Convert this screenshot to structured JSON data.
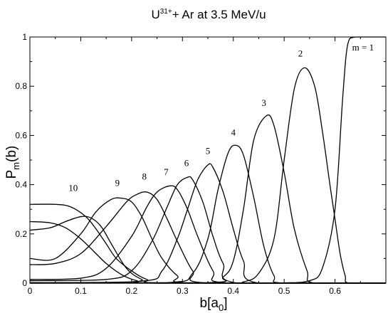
{
  "chart_data": {
    "type": "line",
    "title": {
      "projectile": "U",
      "charge": "31+",
      "rest": "+  Ar   at  3.5  MeV/u"
    },
    "xlabel": {
      "base": "b[a",
      "sub": "0",
      "close": "]"
    },
    "ylabel": {
      "base": "P",
      "sub": "m",
      "arg": "(b)"
    },
    "xlim": [
      0,
      0.7
    ],
    "ylim": [
      0,
      1
    ],
    "xticks": [
      "0",
      "0.1",
      "0.2",
      "0.3",
      "0.4",
      "0.5",
      "0.6"
    ],
    "yticks": [
      "0",
      "0.2",
      "0.4",
      "0.6",
      "0.8",
      "1"
    ],
    "grid": false,
    "legend": "none",
    "series": [
      {
        "label": "m = 1",
        "label_at": [
          0.655,
          0.945
        ],
        "x": [
          0,
          0.45,
          0.5,
          0.55,
          0.575,
          0.6,
          0.615,
          0.625,
          0.64,
          0.7
        ],
        "y": [
          0,
          0,
          0.001,
          0.01,
          0.06,
          0.3,
          0.75,
          0.97,
          1,
          1
        ]
      },
      {
        "label": "2",
        "label_at": [
          0.532,
          0.92
        ],
        "x": [
          0,
          0.38,
          0.42,
          0.45,
          0.48,
          0.5,
          0.52,
          0.54,
          0.56,
          0.575,
          0.59,
          0.6,
          0.61,
          0.62,
          0.628
        ],
        "y": [
          0,
          0,
          0.005,
          0.04,
          0.18,
          0.5,
          0.79,
          0.875,
          0.8,
          0.62,
          0.4,
          0.26,
          0.12,
          0.03,
          0
        ]
      },
      {
        "label": "3",
        "label_at": [
          0.46,
          0.72
        ],
        "x": [
          0,
          0.35,
          0.38,
          0.4,
          0.42,
          0.44,
          0.465,
          0.48,
          0.5,
          0.52,
          0.545,
          0.56
        ],
        "y": [
          0,
          0.002,
          0.025,
          0.09,
          0.3,
          0.58,
          0.68,
          0.64,
          0.45,
          0.22,
          0.05,
          0
        ]
      },
      {
        "label": "4",
        "label_at": [
          0.4,
          0.6
        ],
        "x": [
          0,
          0.27,
          0.32,
          0.35,
          0.37,
          0.39,
          0.405,
          0.42,
          0.44,
          0.46,
          0.48,
          0.5
        ],
        "y": [
          0,
          0.002,
          0.04,
          0.18,
          0.38,
          0.53,
          0.56,
          0.52,
          0.35,
          0.15,
          0.03,
          0
        ]
      },
      {
        "label": "5",
        "label_at": [
          0.35,
          0.525
        ],
        "x": [
          0,
          0.22,
          0.26,
          0.29,
          0.31,
          0.33,
          0.35,
          0.36,
          0.38,
          0.4,
          0.42,
          0.45
        ],
        "y": [
          0.002,
          0.008,
          0.05,
          0.18,
          0.3,
          0.42,
          0.48,
          0.47,
          0.37,
          0.22,
          0.09,
          0
        ]
      },
      {
        "label": "6",
        "label_at": [
          0.308,
          0.475
        ],
        "x": [
          0,
          0.15,
          0.2,
          0.24,
          0.27,
          0.29,
          0.31,
          0.32,
          0.34,
          0.36,
          0.38,
          0.41
        ],
        "y": [
          0.01,
          0.015,
          0.05,
          0.17,
          0.31,
          0.4,
          0.43,
          0.42,
          0.33,
          0.19,
          0.08,
          0
        ]
      },
      {
        "label": "7",
        "label_at": [
          0.268,
          0.44
        ],
        "x": [
          0,
          0.1,
          0.15,
          0.2,
          0.23,
          0.25,
          0.275,
          0.29,
          0.31,
          0.33,
          0.36,
          0.39
        ],
        "y": [
          0.015,
          0.02,
          0.06,
          0.19,
          0.31,
          0.37,
          0.395,
          0.38,
          0.3,
          0.19,
          0.05,
          0
        ]
      },
      {
        "label": "8",
        "label_at": [
          0.225,
          0.42
        ],
        "x": [
          0,
          0.05,
          0.1,
          0.15,
          0.19,
          0.21,
          0.23,
          0.25,
          0.27,
          0.29,
          0.32,
          0.35
        ],
        "y": [
          0.075,
          0.08,
          0.12,
          0.23,
          0.33,
          0.36,
          0.37,
          0.34,
          0.26,
          0.17,
          0.05,
          0
        ]
      },
      {
        "label": "9",
        "label_at": [
          0.172,
          0.395
        ],
        "x": [
          0,
          0.05,
          0.1,
          0.13,
          0.16,
          0.18,
          0.2,
          0.22,
          0.24,
          0.26,
          0.29,
          0.32
        ],
        "y": [
          0.1,
          0.1,
          0.2,
          0.29,
          0.34,
          0.345,
          0.33,
          0.27,
          0.18,
          0.1,
          0.03,
          0
        ]
      },
      {
        "label": "10",
        "label_at": [
          0.085,
          0.375
        ],
        "x": [
          0,
          0.05,
          0.08,
          0.11,
          0.13,
          0.15,
          0.17,
          0.2,
          0.23,
          0.27
        ],
        "y": [
          0.32,
          0.32,
          0.31,
          0.27,
          0.22,
          0.16,
          0.1,
          0.05,
          0.015,
          0
        ]
      },
      {
        "label": "",
        "x": [
          0,
          0.04,
          0.07,
          0.1,
          0.13,
          0.15,
          0.18,
          0.21,
          0.25
        ],
        "y": [
          0.25,
          0.245,
          0.225,
          0.18,
          0.12,
          0.08,
          0.035,
          0.01,
          0
        ]
      },
      {
        "label": "",
        "x": [
          0,
          0.04,
          0.07,
          0.1,
          0.12,
          0.14,
          0.16,
          0.19,
          0.22,
          0.25
        ],
        "y": [
          0.215,
          0.225,
          0.25,
          0.27,
          0.265,
          0.23,
          0.16,
          0.06,
          0.015,
          0
        ]
      }
    ]
  }
}
